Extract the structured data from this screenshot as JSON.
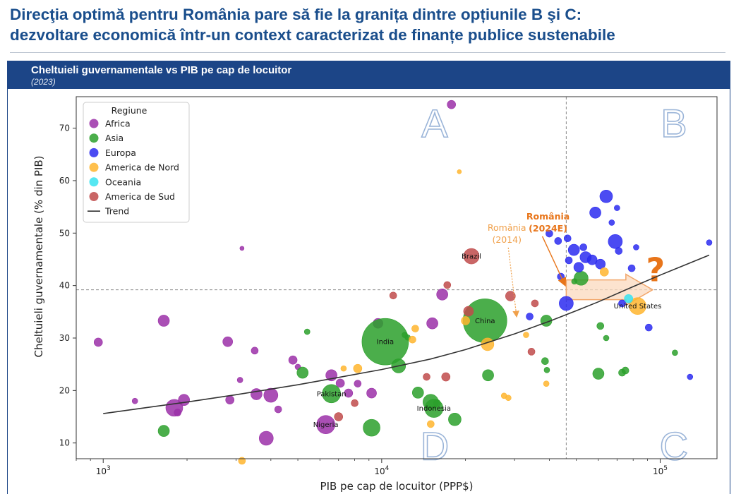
{
  "header": {
    "line1": "Direcţia optimă pentru România pare să fie la granița dintre opțiunile B şi C:",
    "line2": "dezvoltare economică într-un context caracterizat de finanțe publice sustenabile"
  },
  "banner": {
    "title": "Cheltuieli guvernamentale vs PIB pe cap de locuitor",
    "subtitle": "(2023)"
  },
  "colors": {
    "Africa": "#9b30a8",
    "Asia": "#2ca02c",
    "Europa": "#2b2bf0",
    "America de Nord": "#ffb52e",
    "Oceania": "#37e3f0",
    "America de Sud": "#c04b4b",
    "Trend": "#333333",
    "annotation": "#e8751a",
    "quadrant_outline": "#9ab4d8"
  },
  "chart_data": {
    "type": "scatter",
    "xlabel": "PIB pe cap de locuitor (PPP$)",
    "ylabel": "Cheltuieli guvernamentale (% din PIB)",
    "xscale": "log",
    "xlim": [
      800,
      160000
    ],
    "ylim": [
      7,
      76
    ],
    "x_ticks": [
      {
        "value": 1000,
        "base": "10",
        "exp": "3"
      },
      {
        "value": 10000,
        "base": "10",
        "exp": "4"
      },
      {
        "value": 100000,
        "base": "10",
        "exp": "5"
      }
    ],
    "y_ticks": [
      10,
      20,
      30,
      40,
      50,
      60,
      70
    ],
    "legend": {
      "title": "Regiune",
      "position": "top-left",
      "entries": [
        "Africa",
        "Asia",
        "Europa",
        "America de Nord",
        "Oceania",
        "America de Sud",
        "Trend"
      ]
    },
    "reference_lines": {
      "x": 46000,
      "y": 39.2
    },
    "quadrant_labels": [
      {
        "label": "A",
        "x": 15500,
        "y": 71
      },
      {
        "label": "B",
        "x": 112000,
        "y": 71
      },
      {
        "label": "C",
        "x": 112000,
        "y": 9.5
      },
      {
        "label": "D",
        "x": 15500,
        "y": 9.5
      }
    ],
    "trend": [
      [
        1000,
        15.6
      ],
      [
        1500,
        16.9
      ],
      [
        2000,
        17.8
      ],
      [
        3000,
        19.2
      ],
      [
        5000,
        21.1
      ],
      [
        7000,
        22.5
      ],
      [
        10000,
        24.0
      ],
      [
        15000,
        26.0
      ],
      [
        20000,
        27.8
      ],
      [
        30000,
        30.8
      ],
      [
        40000,
        33.2
      ],
      [
        50000,
        35.2
      ],
      [
        60000,
        36.9
      ],
      [
        80000,
        39.8
      ],
      [
        100000,
        42.0
      ],
      [
        150000,
        45.8
      ]
    ],
    "series": [
      {
        "name": "Africa",
        "points": [
          {
            "x": 960,
            "y": 29.2,
            "s": 6
          },
          {
            "x": 1300,
            "y": 18.0,
            "s": 4
          },
          {
            "x": 1650,
            "y": 33.3,
            "s": 8
          },
          {
            "x": 1800,
            "y": 16.7,
            "s": 12
          },
          {
            "x": 1850,
            "y": 15.8,
            "s": 5
          },
          {
            "x": 1950,
            "y": 18.2,
            "s": 8
          },
          {
            "x": 2800,
            "y": 29.3,
            "s": 7
          },
          {
            "x": 2850,
            "y": 18.2,
            "s": 6
          },
          {
            "x": 3100,
            "y": 22.0,
            "s": 4
          },
          {
            "x": 3150,
            "y": 47.1,
            "s": 3
          },
          {
            "x": 3500,
            "y": 27.6,
            "s": 5
          },
          {
            "x": 3550,
            "y": 19.3,
            "s": 8
          },
          {
            "x": 3850,
            "y": 10.9,
            "s": 10
          },
          {
            "x": 4000,
            "y": 19.1,
            "s": 10
          },
          {
            "x": 4250,
            "y": 16.4,
            "s": 5
          },
          {
            "x": 4800,
            "y": 25.8,
            "s": 6
          },
          {
            "x": 5000,
            "y": 24.5,
            "s": 4
          },
          {
            "x": 6300,
            "y": 13.5,
            "s": 13,
            "label": "Nigeria"
          },
          {
            "x": 6600,
            "y": 22.9,
            "s": 8
          },
          {
            "x": 7100,
            "y": 21.4,
            "s": 6
          },
          {
            "x": 7600,
            "y": 19.5,
            "s": 6
          },
          {
            "x": 8200,
            "y": 21.3,
            "s": 5
          },
          {
            "x": 9200,
            "y": 19.5,
            "s": 7
          },
          {
            "x": 9700,
            "y": 32.8,
            "s": 7
          },
          {
            "x": 15200,
            "y": 32.8,
            "s": 8
          },
          {
            "x": 16500,
            "y": 38.3,
            "s": 8
          },
          {
            "x": 17800,
            "y": 74.5,
            "s": 6
          }
        ]
      },
      {
        "name": "Asia",
        "points": [
          {
            "x": 1650,
            "y": 12.3,
            "s": 8
          },
          {
            "x": 5200,
            "y": 23.4,
            "s": 8
          },
          {
            "x": 5400,
            "y": 31.2,
            "s": 4
          },
          {
            "x": 6600,
            "y": 19.4,
            "s": 13,
            "label": "Pakistan"
          },
          {
            "x": 9200,
            "y": 12.9,
            "s": 12
          },
          {
            "x": 10300,
            "y": 29.3,
            "s": 33,
            "label": "India"
          },
          {
            "x": 11500,
            "y": 24.7,
            "s": 10
          },
          {
            "x": 12100,
            "y": 30.6,
            "s": 4
          },
          {
            "x": 12400,
            "y": 30.1,
            "s": 4
          },
          {
            "x": 13500,
            "y": 19.6,
            "s": 8
          },
          {
            "x": 15000,
            "y": 17.8,
            "s": 11
          },
          {
            "x": 15400,
            "y": 16.6,
            "s": 13,
            "label": "Indonesia"
          },
          {
            "x": 15800,
            "y": 17.6,
            "s": 5
          },
          {
            "x": 18300,
            "y": 14.5,
            "s": 9
          },
          {
            "x": 23500,
            "y": 33.3,
            "s": 31,
            "label": "China"
          },
          {
            "x": 24100,
            "y": 22.9,
            "s": 8
          },
          {
            "x": 38600,
            "y": 25.6,
            "s": 5
          },
          {
            "x": 39000,
            "y": 33.3,
            "s": 8
          },
          {
            "x": 39200,
            "y": 23.9,
            "s": 4
          },
          {
            "x": 49200,
            "y": 40.8,
            "s": 4
          },
          {
            "x": 52000,
            "y": 41.4,
            "s": 10
          },
          {
            "x": 60000,
            "y": 23.2,
            "s": 8
          },
          {
            "x": 61000,
            "y": 32.3,
            "s": 5
          },
          {
            "x": 64000,
            "y": 30.0,
            "s": 4
          },
          {
            "x": 73000,
            "y": 23.4,
            "s": 5
          },
          {
            "x": 75000,
            "y": 23.8,
            "s": 5
          },
          {
            "x": 113000,
            "y": 27.2,
            "s": 4
          }
        ]
      },
      {
        "name": "Europa",
        "points": [
          {
            "x": 34000,
            "y": 34.1,
            "s": 5
          },
          {
            "x": 40000,
            "y": 49.9,
            "s": 5
          },
          {
            "x": 43000,
            "y": 48.5,
            "s": 5
          },
          {
            "x": 44000,
            "y": 41.7,
            "s": 5
          },
          {
            "x": 46000,
            "y": 36.6,
            "s": 10
          },
          {
            "x": 46500,
            "y": 49.0,
            "s": 5
          },
          {
            "x": 47000,
            "y": 44.8,
            "s": 5
          },
          {
            "x": 49000,
            "y": 46.8,
            "s": 8
          },
          {
            "x": 51000,
            "y": 43.5,
            "s": 7
          },
          {
            "x": 53000,
            "y": 47.3,
            "s": 5
          },
          {
            "x": 54000,
            "y": 45.4,
            "s": 8
          },
          {
            "x": 57000,
            "y": 44.9,
            "s": 7
          },
          {
            "x": 58500,
            "y": 53.9,
            "s": 8
          },
          {
            "x": 61000,
            "y": 44.1,
            "s": 7
          },
          {
            "x": 64000,
            "y": 57.0,
            "s": 9
          },
          {
            "x": 67000,
            "y": 52.0,
            "s": 4
          },
          {
            "x": 69000,
            "y": 48.4,
            "s": 10
          },
          {
            "x": 70000,
            "y": 54.8,
            "s": 4
          },
          {
            "x": 71000,
            "y": 46.6,
            "s": 5
          },
          {
            "x": 73000,
            "y": 36.6,
            "s": 5
          },
          {
            "x": 79000,
            "y": 43.3,
            "s": 5
          },
          {
            "x": 82000,
            "y": 47.3,
            "s": 4
          },
          {
            "x": 91000,
            "y": 32.0,
            "s": 5
          },
          {
            "x": 128000,
            "y": 22.6,
            "s": 4
          },
          {
            "x": 150000,
            "y": 48.2,
            "s": 4
          }
        ]
      },
      {
        "name": "America de Nord",
        "points": [
          {
            "x": 3150,
            "y": 6.6,
            "s": 5
          },
          {
            "x": 7300,
            "y": 24.2,
            "s": 4
          },
          {
            "x": 8200,
            "y": 24.2,
            "s": 6
          },
          {
            "x": 12900,
            "y": 29.7,
            "s": 5
          },
          {
            "x": 13200,
            "y": 31.8,
            "s": 5
          },
          {
            "x": 15000,
            "y": 13.6,
            "s": 5
          },
          {
            "x": 19000,
            "y": 61.7,
            "s": 3
          },
          {
            "x": 20000,
            "y": 33.3,
            "s": 6
          },
          {
            "x": 24000,
            "y": 28.8,
            "s": 9
          },
          {
            "x": 27500,
            "y": 19.0,
            "s": 4
          },
          {
            "x": 28500,
            "y": 18.6,
            "s": 4
          },
          {
            "x": 33000,
            "y": 30.6,
            "s": 4
          },
          {
            "x": 39000,
            "y": 21.3,
            "s": 4
          },
          {
            "x": 63000,
            "y": 42.6,
            "s": 6
          },
          {
            "x": 83000,
            "y": 36.1,
            "s": 12,
            "label": "United States"
          }
        ]
      },
      {
        "name": "Oceania",
        "points": [
          {
            "x": 77000,
            "y": 37.5,
            "s": 6
          }
        ]
      },
      {
        "name": "America de Sud",
        "points": [
          {
            "x": 7000,
            "y": 15.0,
            "s": 6
          },
          {
            "x": 8000,
            "y": 17.6,
            "s": 5
          },
          {
            "x": 11000,
            "y": 38.1,
            "s": 5
          },
          {
            "x": 14500,
            "y": 22.6,
            "s": 5
          },
          {
            "x": 17000,
            "y": 22.6,
            "s": 6
          },
          {
            "x": 17200,
            "y": 40.1,
            "s": 5
          },
          {
            "x": 20500,
            "y": 35.1,
            "s": 7
          },
          {
            "x": 21000,
            "y": 45.6,
            "s": 11,
            "label": "Brazil"
          },
          {
            "x": 29000,
            "y": 38.0,
            "s": 7
          },
          {
            "x": 34500,
            "y": 27.4,
            "s": 5
          },
          {
            "x": 35500,
            "y": 36.6,
            "s": 5
          }
        ]
      }
    ],
    "annotations": {
      "romania_2014": {
        "line1": "România",
        "line2": "(2014)",
        "from": [
          29500,
          47.5
        ],
        "to": [
          30500,
          34.2
        ]
      },
      "romania_2024e": {
        "line1": "România",
        "line2": "(2024E)",
        "from": [
          40500,
          44.8
        ],
        "to": [
          45500,
          39.6
        ]
      },
      "arrow": {
        "from_x": 46000,
        "to_x": 94000,
        "y": 39.2
      },
      "question_mark": "?"
    }
  }
}
